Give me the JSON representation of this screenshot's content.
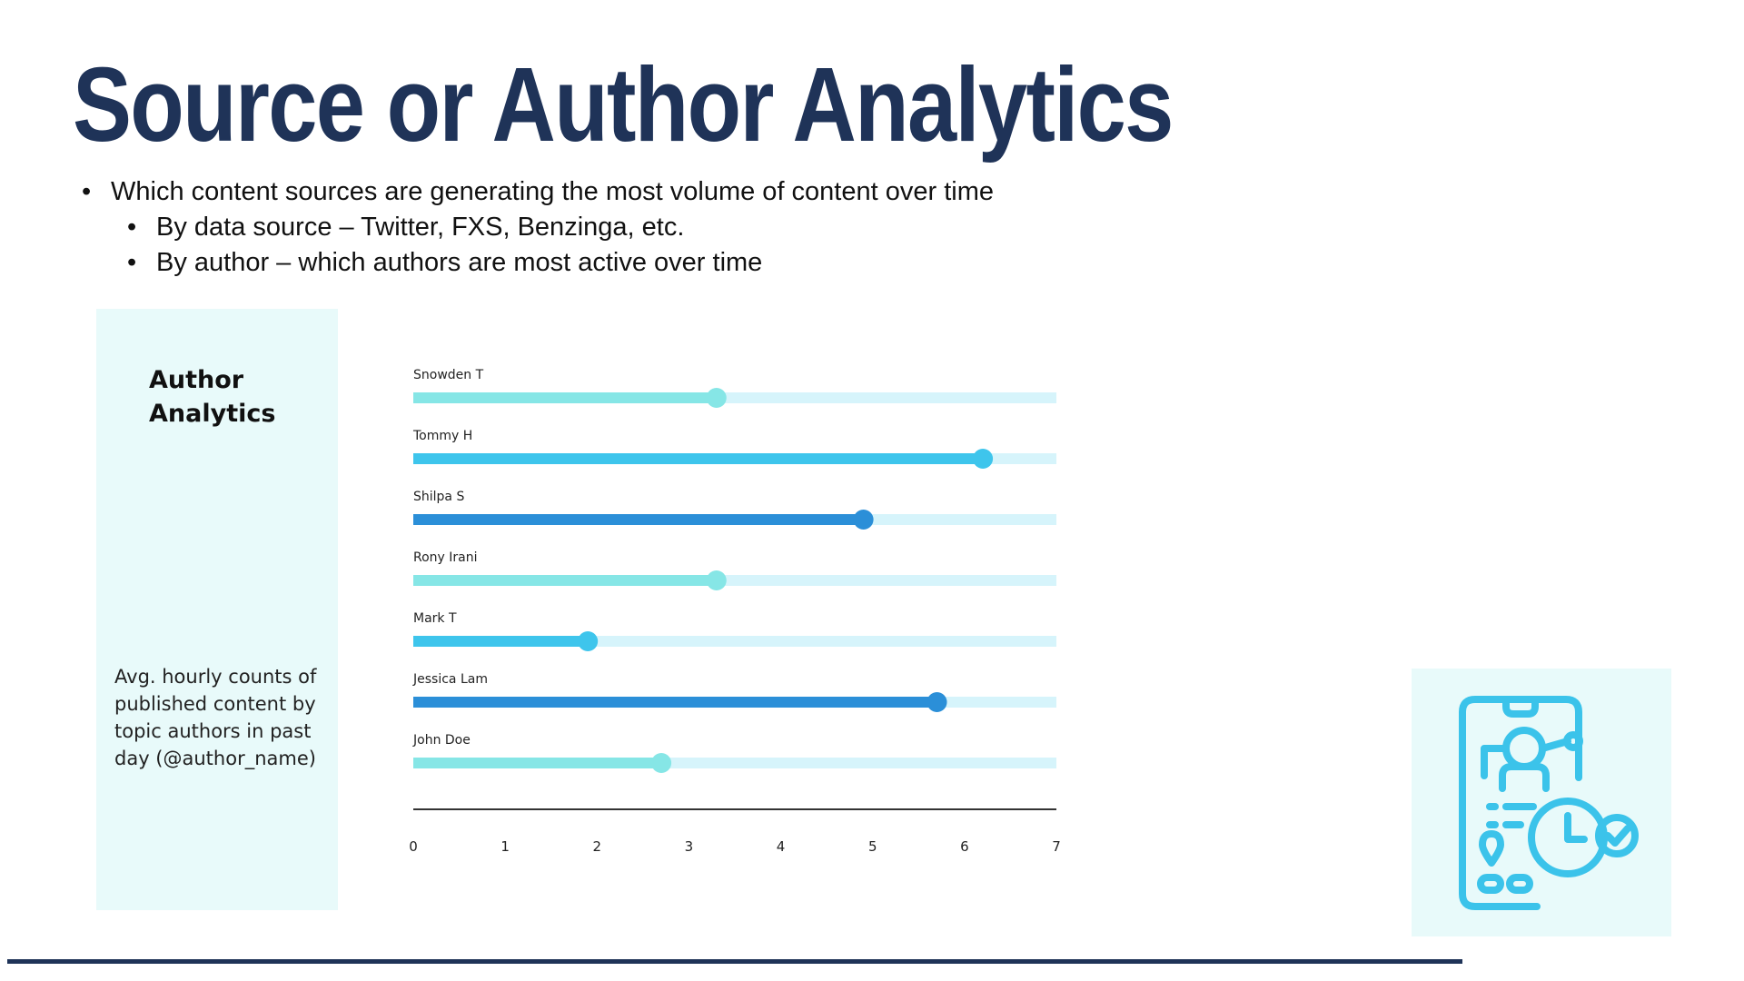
{
  "slide": {
    "title": "Source or Author Analytics",
    "bullets": [
      "Which content sources are generating the most volume of content over time",
      "By data source – Twitter, FXS, Benzinga, etc.",
      "By author – which authors are most active over time"
    ]
  },
  "panel": {
    "title": "Author Analytics",
    "description": "Avg. hourly counts of published content by topic authors in past day (@author_name)"
  },
  "icon": {
    "name": "mobile-analytics-clock-check-icon",
    "color": "#3bc3ea"
  },
  "chart_data": {
    "type": "bar",
    "orientation": "horizontal",
    "categories": [
      "Snowden T",
      "Tommy H",
      "Shilpa S",
      "Rony Irani",
      "Mark T",
      "Jessica Lam",
      "John Doe"
    ],
    "values": [
      3.3,
      6.2,
      4.9,
      3.3,
      1.9,
      5.7,
      2.7
    ],
    "xlim": [
      0,
      7
    ],
    "xticks": [
      0,
      1,
      2,
      3,
      4,
      5,
      6,
      7
    ],
    "bar_colors": [
      "#86e6e6",
      "#3ec5ec",
      "#2b8fd8",
      "#86e6e6",
      "#3ec5ec",
      "#2b8fd8",
      "#86e6e6"
    ],
    "track_color": "#d6f4fb",
    "grid": false
  }
}
